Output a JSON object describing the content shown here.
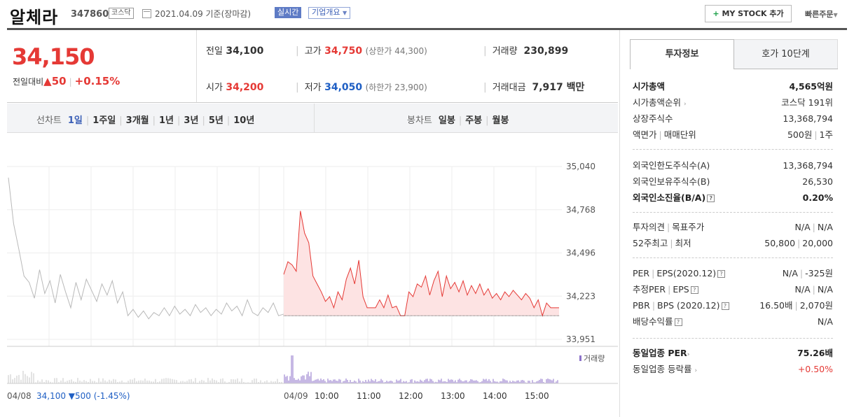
{
  "header": {
    "company": "알체라",
    "code": "347860",
    "market": "코스닥",
    "date_text": "2021.04.09 기준(장마감)",
    "realtime_label": "실시간",
    "corp_info_label": "기업개요",
    "mystock_label": "MY STOCK 추가",
    "quick_order_label": "빠른주문"
  },
  "price": {
    "current": "34,150",
    "change_label": "전일대비",
    "change_amount": "50",
    "change_pct": "+0.15%",
    "prev_close_label": "전일",
    "prev_close": "34,100",
    "open_label": "시가",
    "open": "34,200",
    "high_label": "고가",
    "high": "34,750",
    "upper_limit": "(상한가 44,300)",
    "low_label": "저가",
    "low": "34,050",
    "lower_limit": "(하한가 23,900)",
    "volume_label": "거래량",
    "volume": "230,899",
    "amount_label": "거래대금",
    "amount": "7,917 백만"
  },
  "tabs": {
    "line_label": "선차트",
    "line_items": [
      "1일",
      "1주일",
      "3개월",
      "1년",
      "3년",
      "5년",
      "10년"
    ],
    "active": "1일",
    "candle_label": "봉차트",
    "candle_items": [
      "일봉",
      "주봉",
      "월봉"
    ]
  },
  "colors": {
    "up": "#e53935",
    "down": "#1f5fc4",
    "accent": "#3b5fb6"
  },
  "chart_data": {
    "type": "line",
    "y_ticks": [
      "35,040",
      "34,768",
      "34,496",
      "34,223",
      "33,951"
    ],
    "ylim": [
      33951,
      35040
    ],
    "prev_close": 34100,
    "prev_day": {
      "date": "04/08",
      "close": "34,100",
      "change": "500",
      "change_pct": "(-1.45%)"
    },
    "x_labels": [
      "04/09",
      "10:00",
      "11:00",
      "12:00",
      "13:00",
      "14:00",
      "15:00"
    ],
    "volume_legend": "거래량",
    "series": [
      {
        "values_prev_day": [
          34970,
          34680,
          34520,
          34350,
          34310,
          34210,
          34390,
          34240,
          34320,
          34180,
          34360,
          34250,
          34150,
          34310,
          34200,
          34330,
          34260,
          34190,
          34300,
          34230,
          34320,
          34180,
          34250,
          34100,
          34140,
          34090,
          34130,
          34080,
          34120,
          34100,
          34150,
          34100,
          34160,
          34110,
          34140,
          34100,
          34170,
          34120,
          34150,
          34100,
          34140,
          34110,
          34180,
          34130,
          34160,
          34100,
          34200,
          34120,
          34100,
          34150,
          34120,
          34180,
          34100,
          34110
        ],
        "values_today": [
          34360,
          34440,
          34420,
          34380,
          34760,
          34620,
          34560,
          34350,
          34300,
          34250,
          34190,
          34220,
          34150,
          34250,
          34200,
          34330,
          34400,
          34300,
          34450,
          34220,
          34150,
          34150,
          34150,
          34200,
          34150,
          34230,
          34150,
          34160,
          34100,
          34100,
          34250,
          34220,
          34300,
          34280,
          34350,
          34230,
          34320,
          34380,
          34220,
          34350,
          34270,
          34310,
          34250,
          34320,
          34230,
          34290,
          34240,
          34300,
          34230,
          34270,
          34210,
          34240,
          34200,
          34250,
          34220,
          34260,
          34230,
          34200,
          34240,
          34210,
          34150,
          34200,
          34100,
          34180,
          34150,
          34150,
          34150
        ]
      }
    ]
  },
  "invest": {
    "tab_on": "투자정보",
    "tab_off": "호가 10단계",
    "market_cap_label": "시가총액",
    "market_cap": "4,565억원",
    "cap_rank_label": "시가총액순위",
    "cap_rank": "코스닥 191위",
    "shares_label": "상장주식수",
    "shares": "13,368,794",
    "par_label": "액면가",
    "unit_label": "매매단위",
    "par": "500원",
    "unit": "1주",
    "foreign_limit_label": "외국인한도주식수(A)",
    "foreign_limit": "13,368,794",
    "foreign_hold_label": "외국인보유주식수(B)",
    "foreign_hold": "26,530",
    "foreign_ratio_label": "외국인소진율(B/A)",
    "foreign_ratio": "0.20%",
    "opinion_label": "투자의견",
    "target_label": "목표주가",
    "opinion": "N/A",
    "target": "N/A",
    "w52_label": "52주최고",
    "low_label": "최저",
    "w52_high": "50,800",
    "w52_low": "20,000",
    "per_label": "PER",
    "eps_label": "EPS(2020.12)",
    "per": "N/A",
    "eps": "-325원",
    "est_per_label": "추정PER",
    "est_eps_label": "EPS",
    "est_per": "N/A",
    "est_eps": "N/A",
    "pbr_label": "PBR",
    "bps_label": "BPS (2020.12)",
    "pbr": "16.50배",
    "bps": "2,070원",
    "div_label": "배당수익률",
    "div": "N/A",
    "sector_per_label": "동일업종 PER",
    "sector_per": "75.26배",
    "sector_rate_label": "동일업종 등락률",
    "sector_rate": "+0.50%"
  }
}
